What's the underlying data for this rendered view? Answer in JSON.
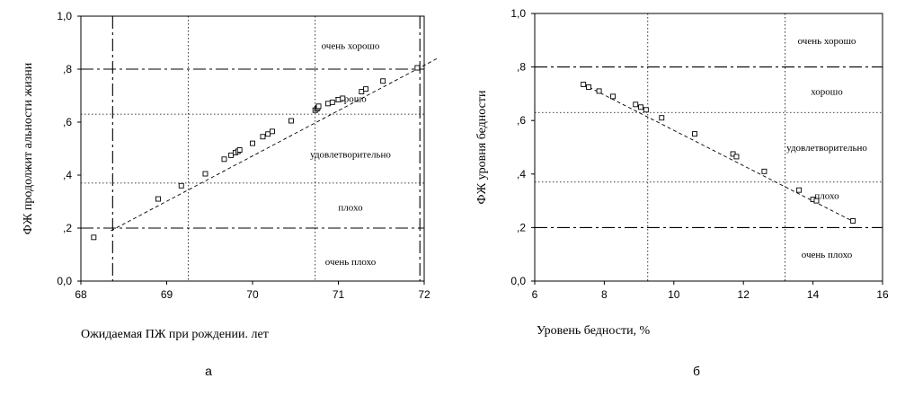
{
  "chart_data": [
    {
      "type": "scatter",
      "panel_label": "а",
      "xlabel": "Ожидаемая ПЖ при рождении. лет",
      "ylabel": "ФЖ продолжит альности жизни",
      "xlim": [
        68,
        72
      ],
      "ylim": [
        0,
        1
      ],
      "x_ticks": [
        "68",
        "69",
        "70",
        "71",
        "72"
      ],
      "y_ticks": [
        "0,0",
        ",2",
        ",4",
        ",6",
        ",8",
        "1,0"
      ],
      "thresholds_y_dashdot": [
        0.2,
        0.8
      ],
      "thresholds_y_dotted": [
        0.37,
        0.63
      ],
      "thresholds_x_dashdot": [
        68.37,
        71.95
      ],
      "thresholds_x_dotted": [
        69.25,
        70.73
      ],
      "zones": [
        {
          "label": "очень хорошо",
          "y": 0.89
        },
        {
          "label": "хорошо",
          "y": 0.69
        },
        {
          "label": "удовлетворительно",
          "y": 0.48
        },
        {
          "label": "плохо",
          "y": 0.28
        },
        {
          "label": "очень плохо",
          "y": 0.075
        }
      ],
      "trend": {
        "x": [
          68.35,
          72.15
        ],
        "y": [
          0.19,
          0.84
        ]
      },
      "points": {
        "x": [
          68.15,
          68.9,
          69.17,
          69.45,
          69.67,
          69.75,
          69.8,
          69.83,
          69.85,
          70.0,
          70.12,
          70.18,
          70.23,
          70.45,
          70.73,
          70.75,
          70.76,
          70.77,
          70.88,
          70.93,
          71.0,
          71.05,
          71.27,
          71.32,
          71.52,
          71.92
        ],
        "y": [
          0.165,
          0.31,
          0.36,
          0.405,
          0.46,
          0.475,
          0.485,
          0.49,
          0.495,
          0.52,
          0.545,
          0.555,
          0.565,
          0.605,
          0.645,
          0.65,
          0.655,
          0.66,
          0.67,
          0.675,
          0.685,
          0.69,
          0.715,
          0.725,
          0.755,
          0.805
        ]
      }
    },
    {
      "type": "scatter",
      "panel_label": "б",
      "xlabel": "Уровень бедности, %",
      "ylabel": "ФЖ уровня бедности",
      "xlim": [
        6,
        16
      ],
      "ylim": [
        0,
        1
      ],
      "x_ticks": [
        "6",
        "8",
        "10",
        "12",
        "14",
        "16"
      ],
      "y_ticks": [
        "0,0",
        ",2",
        ",4",
        ",6",
        ",8",
        "1,0"
      ],
      "thresholds_y_dashdot": [
        0.2,
        0.8
      ],
      "thresholds_y_dotted": [
        0.37,
        0.63
      ],
      "thresholds_x_dotted": [
        9.25,
        13.2
      ],
      "zones": [
        {
          "label": "очень хорошо",
          "y": 0.9
        },
        {
          "label": "хорошо",
          "y": 0.71
        },
        {
          "label": "удовлетворительно",
          "y": 0.5
        },
        {
          "label": "плохо",
          "y": 0.32
        },
        {
          "label": "очень плохо",
          "y": 0.1
        }
      ],
      "trend": {
        "x": [
          7.4,
          15.2
        ],
        "y": [
          0.735,
          0.22
        ]
      },
      "points": {
        "x": [
          7.4,
          7.55,
          7.85,
          8.25,
          8.9,
          9.05,
          9.2,
          9.65,
          10.6,
          11.7,
          11.8,
          12.6,
          13.6,
          14.0,
          14.1,
          15.15
        ],
        "y": [
          0.735,
          0.725,
          0.71,
          0.69,
          0.66,
          0.65,
          0.64,
          0.61,
          0.55,
          0.475,
          0.465,
          0.41,
          0.34,
          0.305,
          0.3,
          0.225
        ]
      }
    }
  ]
}
